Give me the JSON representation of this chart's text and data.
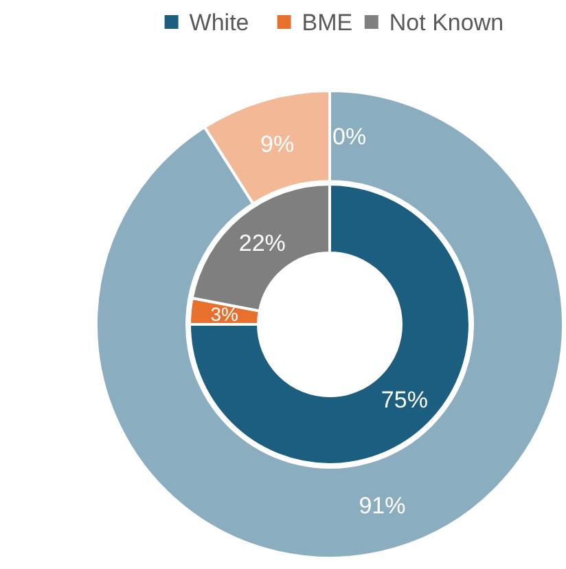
{
  "chart_data": {
    "type": "donut",
    "categories": [
      "White",
      "BME",
      "Not Known"
    ],
    "legend": "top",
    "series": [
      {
        "values": [
          75,
          3,
          22
        ],
        "colors": [
          "#1b5e80",
          "#e8702f",
          "#7f7f7f"
        ],
        "value_labels": [
          "75%",
          "3%",
          "22%"
        ]
      },
      {
        "values": [
          91,
          9,
          0
        ],
        "colors": [
          "#8badc0",
          "#f3b896",
          "#bfbfbf"
        ],
        "value_labels": [
          "91%",
          "9%",
          "0%"
        ]
      }
    ]
  }
}
